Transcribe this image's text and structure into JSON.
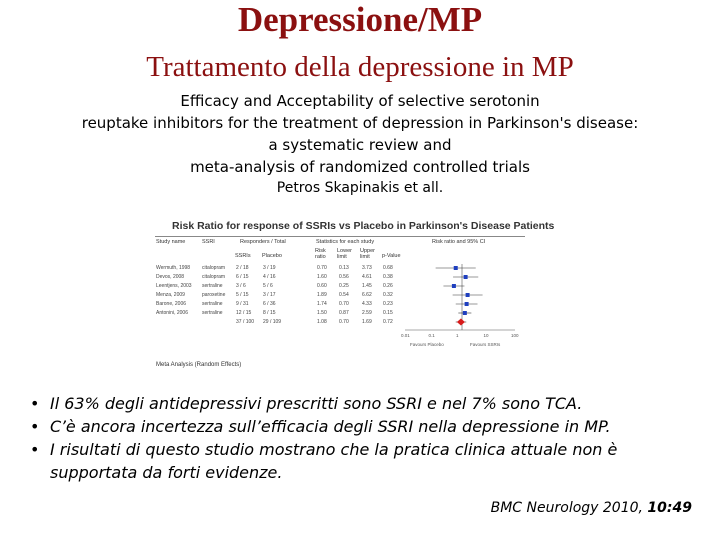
{
  "slide": {
    "title": "Depressione/MP",
    "subtitle": "Trattamento  della depressione in MP",
    "paper_title_lines": [
      "Efficacy and Acceptability of selective serotonin",
      "reuptake inhibitors for the treatment of depression in Parkinson's disease:",
      "a systematic review and",
      "meta-analysis of randomized controlled trials"
    ],
    "authors": "Petros Skapinakis et all."
  },
  "figure": {
    "title": "Risk Ratio for response of SSRIs vs Placebo in Parkinson's Disease Patients",
    "columns": {
      "study": "Study name",
      "ssri": "SSRI",
      "responders": "Responders / Total",
      "ssris": "SSRIs",
      "placebo": "Placebo",
      "stats": "Statistics for each study",
      "rr": "Risk ratio",
      "lower": "Lower limit",
      "upper": "Upper limit",
      "p": "p-Value",
      "forest": "Risk ratio and 95% CI"
    },
    "rows": [
      {
        "study": "Wermuth, 1998",
        "ssri": "citalopram",
        "ssris": "2 / 18",
        "placebo": "3 / 19",
        "rr": "0.70",
        "lower": "0.13",
        "upper": "3.73",
        "p": "0.68"
      },
      {
        "study": "Devos, 2008",
        "ssri": "citalopram",
        "ssris": "6 / 15",
        "placebo": "4 / 16",
        "rr": "1.60",
        "lower": "0.56",
        "upper": "4.61",
        "p": "0.38"
      },
      {
        "study": "Leentjens, 2003",
        "ssri": "sertraline",
        "ssris": "3 / 6",
        "placebo": "5 / 6",
        "rr": "0.60",
        "lower": "0.25",
        "upper": "1.45",
        "p": "0.26"
      },
      {
        "study": "Menza, 2009",
        "ssri": "paroxetine",
        "ssris": "5 / 15",
        "placebo": "3 / 17",
        "rr": "1.89",
        "lower": "0.54",
        "upper": "6.62",
        "p": "0.32"
      },
      {
        "study": "Barone, 2006",
        "ssri": "sertraline",
        "ssris": "9 / 31",
        "placebo": "6 / 36",
        "rr": "1.74",
        "lower": "0.70",
        "upper": "4.33",
        "p": "0.23"
      },
      {
        "study": "Antonini, 2006",
        "ssri": "sertraline",
        "ssris": "12 / 15",
        "placebo": "8 / 15",
        "rr": "1.50",
        "lower": "0.87",
        "upper": "2.59",
        "p": "0.15"
      },
      {
        "study": "",
        "ssri": "",
        "ssris": "37 / 100",
        "placebo": "29 / 109",
        "rr": "1.08",
        "lower": "0.70",
        "upper": "1.69",
        "p": "0.72"
      }
    ],
    "axis_ticks": [
      "0.01",
      "0.1",
      "1",
      "10",
      "100"
    ],
    "favours_placebo": "Favours Placebo",
    "favours_ssris": "Favours SSRIs",
    "footer": "Meta Analysis (Random Effects)"
  },
  "bullets": [
    "Il 63% degli antidepressivi prescritti sono SSRI e nel 7% sono TCA.",
    "C’è ancora incertezza sull’efficacia degli SSRI nella depressione in MP.",
    " I risultati di questo studio mostrano che la pratica clinica attuale non è supportata da forti evidenze."
  ],
  "citation": {
    "journal": "BMC Neurology 2010, ",
    "volume": "10:49"
  },
  "colors": {
    "title": "#8b1010",
    "study_marker": "#1f3fbf",
    "summary_marker": "#d81b1b"
  }
}
